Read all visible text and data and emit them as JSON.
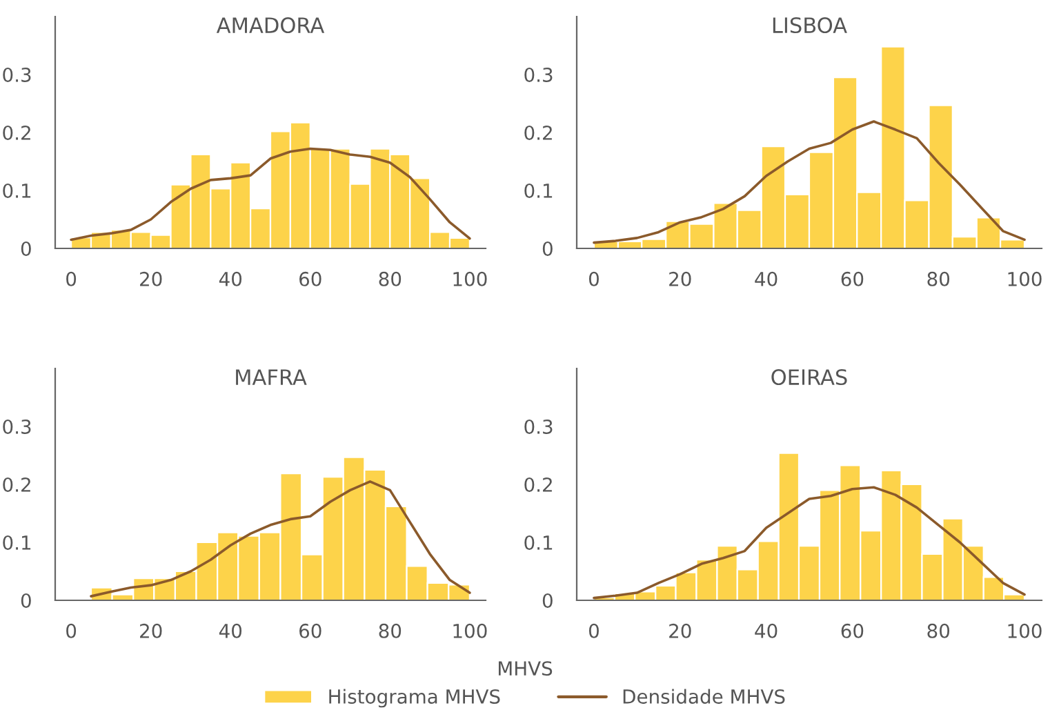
{
  "chart_data": [
    {
      "type": "histogram",
      "title": "AMADORA",
      "legend": "bottom",
      "legend_title": "MHVS",
      "grid": false,
      "xlim": [
        -4,
        104
      ],
      "ylim": [
        0,
        0.4
      ],
      "xticks": [
        0,
        20,
        40,
        60,
        80,
        100
      ],
      "yticks": [
        0,
        0.1,
        0.2,
        0.3
      ],
      "bins": [
        0,
        5,
        10,
        15,
        20,
        25,
        30,
        35,
        40,
        45,
        50,
        55,
        60,
        65,
        70,
        75,
        80,
        85,
        90,
        95,
        100
      ],
      "series": [
        {
          "type": "histogram",
          "name": "Histograma MHVS",
          "color": "#fdd34a",
          "values": [
            0.019,
            0.028,
            0.032,
            0.028,
            0.023,
            0.11,
            0.162,
            0.103,
            0.148,
            0.069,
            0.202,
            0.217,
            0.172,
            0.172,
            0.111,
            0.172,
            0.162,
            0.121,
            0.028,
            0.018
          ]
        },
        {
          "type": "line",
          "name": "Densidade MHVS",
          "color": "#8b5a2b",
          "x": [
            0,
            5,
            10,
            15,
            20,
            25,
            30,
            35,
            40,
            45,
            50,
            55,
            60,
            65,
            70,
            75,
            80,
            85,
            90,
            95,
            100
          ],
          "values": [
            0.015,
            0.022,
            0.026,
            0.032,
            0.05,
            0.08,
            0.103,
            0.118,
            0.121,
            0.126,
            0.155,
            0.167,
            0.172,
            0.17,
            0.162,
            0.158,
            0.148,
            0.123,
            0.085,
            0.045,
            0.017
          ]
        }
      ]
    },
    {
      "type": "histogram",
      "title": "LISBOA",
      "grid": false,
      "xlim": [
        -4,
        104
      ],
      "ylim": [
        0,
        0.4
      ],
      "xticks": [
        0,
        20,
        40,
        60,
        80,
        100
      ],
      "yticks": [
        0,
        0.1,
        0.2,
        0.3
      ],
      "bins": [
        0,
        5.6,
        11.1,
        16.7,
        22.2,
        27.8,
        33.3,
        38.9,
        44.4,
        50,
        55.6,
        61.1,
        66.7,
        72.2,
        77.8,
        83.3,
        88.9,
        94.4,
        100
      ],
      "series": [
        {
          "type": "histogram",
          "color": "#fdd34a",
          "values": [
            0.012,
            0.012,
            0.016,
            0.047,
            0.042,
            0.078,
            0.066,
            0.176,
            0.093,
            0.166,
            0.295,
            0.097,
            0.348,
            0.083,
            0.247,
            0.02,
            0.053,
            0.015
          ]
        },
        {
          "type": "line",
          "color": "#8b5a2b",
          "x": [
            0,
            5,
            10,
            15,
            20,
            25,
            30,
            35,
            40,
            45,
            50,
            55,
            60,
            65,
            70,
            75,
            80,
            85,
            90,
            95,
            100
          ],
          "values": [
            0.01,
            0.013,
            0.018,
            0.028,
            0.045,
            0.054,
            0.068,
            0.09,
            0.125,
            0.15,
            0.172,
            0.182,
            0.205,
            0.219,
            0.205,
            0.19,
            0.148,
            0.11,
            0.07,
            0.03,
            0.015
          ]
        }
      ]
    },
    {
      "type": "histogram",
      "title": "MAFRA",
      "grid": false,
      "xlim": [
        -4,
        104
      ],
      "ylim": [
        0,
        0.4
      ],
      "xticks": [
        0,
        20,
        40,
        60,
        80,
        100
      ],
      "yticks": [
        0,
        0.1,
        0.2,
        0.3
      ],
      "bins": [
        5,
        10.3,
        15.6,
        20.8,
        26.1,
        31.4,
        36.7,
        41.9,
        47.2,
        52.5,
        57.8,
        63.1,
        68.3,
        73.6,
        78.9,
        84.2,
        89.4,
        94.7,
        100
      ],
      "series": [
        {
          "type": "histogram",
          "color": "#fdd34a",
          "values": [
            0.022,
            0.01,
            0.038,
            0.038,
            0.05,
            0.1,
            0.117,
            0.111,
            0.117,
            0.219,
            0.079,
            0.213,
            0.247,
            0.225,
            0.162,
            0.059,
            0.03,
            0.027
          ]
        },
        {
          "type": "line",
          "color": "#8b5a2b",
          "x": [
            5,
            10,
            15,
            20,
            25,
            30,
            35,
            40,
            45,
            50,
            55,
            60,
            65,
            70,
            75,
            80,
            85,
            90,
            95,
            100
          ],
          "values": [
            0.007,
            0.015,
            0.022,
            0.026,
            0.035,
            0.05,
            0.07,
            0.095,
            0.115,
            0.13,
            0.14,
            0.145,
            0.17,
            0.19,
            0.205,
            0.19,
            0.135,
            0.08,
            0.035,
            0.013
          ]
        }
      ]
    },
    {
      "type": "histogram",
      "title": "OEIRAS",
      "grid": false,
      "xlim": [
        -4,
        104
      ],
      "ylim": [
        0,
        0.4
      ],
      "xticks": [
        0,
        20,
        40,
        60,
        80,
        100
      ],
      "yticks": [
        0,
        0.1,
        0.2,
        0.3
      ],
      "bins": [
        0,
        4.8,
        9.5,
        14.3,
        19,
        23.8,
        28.6,
        33.3,
        38.1,
        42.9,
        47.6,
        52.4,
        57.1,
        61.9,
        66.7,
        71.4,
        76.2,
        81,
        85.7,
        90.5,
        95.2,
        100
      ],
      "series": [
        {
          "type": "histogram",
          "color": "#fdd34a",
          "values": [
            0.005,
            0.012,
            0.015,
            0.025,
            0.048,
            0.07,
            0.094,
            0.053,
            0.102,
            0.254,
            0.094,
            0.19,
            0.233,
            0.12,
            0.224,
            0.2,
            0.08,
            0.141,
            0.094,
            0.04,
            0.01
          ]
        },
        {
          "type": "line",
          "color": "#8b5a2b",
          "x": [
            0,
            5,
            10,
            15,
            20,
            25,
            30,
            35,
            40,
            45,
            50,
            55,
            60,
            65,
            70,
            75,
            80,
            85,
            90,
            95,
            100
          ],
          "values": [
            0.004,
            0.008,
            0.013,
            0.03,
            0.045,
            0.063,
            0.073,
            0.085,
            0.125,
            0.15,
            0.175,
            0.18,
            0.192,
            0.195,
            0.182,
            0.16,
            0.13,
            0.1,
            0.065,
            0.03,
            0.01
          ]
        }
      ]
    }
  ]
}
